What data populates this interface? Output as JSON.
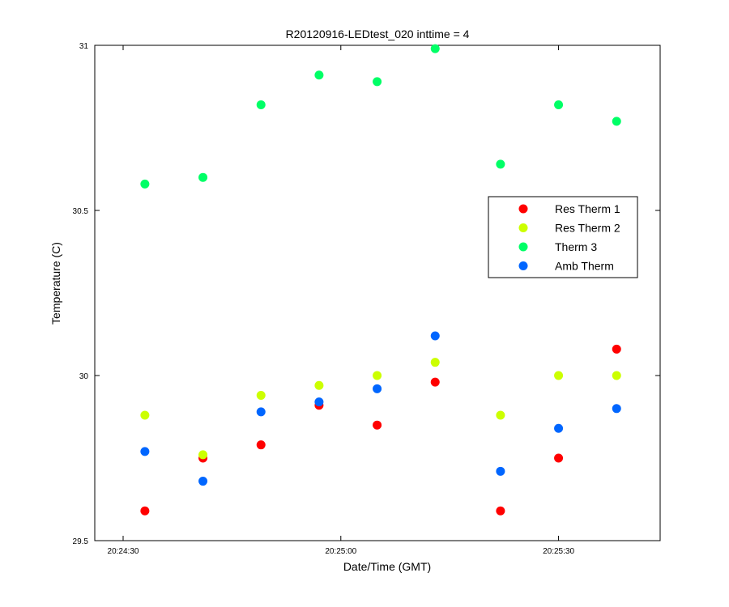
{
  "chart_data": {
    "type": "scatter",
    "title": "R20120916-LEDtest_020 inttime = 4",
    "xlabel": "Date/Time (GMT)",
    "ylabel": "Temperature (C)",
    "xlim": [
      "20:24:30",
      "20:25:44"
    ],
    "ylim": [
      29.5,
      31
    ],
    "x_ticks": [
      "20:24:30",
      "20:25:00",
      "20:25:30"
    ],
    "y_ticks": [
      "29.5",
      "30",
      "30.5",
      "31"
    ],
    "grid": false,
    "legend_position": "right, upper-middle",
    "x": [
      "20:24:33",
      "20:24:41",
      "20:24:49",
      "20:24:57",
      "20:25:05",
      "20:25:13",
      "20:25:22",
      "20:25:30",
      "20:25:38"
    ],
    "series": [
      {
        "name": "Res Therm 1",
        "color": "#ff0000",
        "values": [
          29.59,
          29.75,
          29.79,
          29.91,
          29.85,
          29.98,
          29.59,
          29.75,
          30.08
        ]
      },
      {
        "name": "Res Therm 2",
        "color": "#ccff00",
        "values": [
          29.88,
          29.76,
          29.94,
          29.97,
          30.0,
          30.04,
          29.88,
          30.0,
          30.0
        ]
      },
      {
        "name": "Therm 3",
        "color": "#00ff66",
        "values": [
          30.58,
          30.6,
          30.82,
          30.91,
          30.89,
          30.99,
          30.64,
          30.82,
          30.77
        ]
      },
      {
        "name": "Amb Therm",
        "color": "#0066ff",
        "values": [
          29.77,
          29.68,
          29.89,
          29.92,
          29.96,
          30.12,
          29.71,
          29.84,
          29.9
        ]
      }
    ]
  }
}
